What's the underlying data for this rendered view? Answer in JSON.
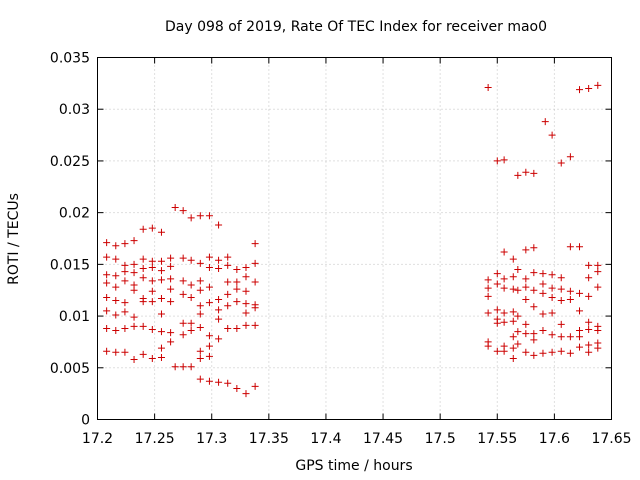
{
  "chart_data": {
    "type": "scatter",
    "title": "Day 098 of 2019, Rate Of TEC Index for receiver mao0",
    "xlabel": "GPS time / hours",
    "ylabel": "ROTI / TECUs",
    "xlim": [
      17.2,
      17.65
    ],
    "ylim": [
      0,
      0.035
    ],
    "xticks": [
      17.2,
      17.25,
      17.3,
      17.35,
      17.4,
      17.45,
      17.5,
      17.55,
      17.6,
      17.65
    ],
    "xtick_labels": [
      "17.2",
      "17.25",
      "17.3",
      "17.35",
      "17.4",
      "17.45",
      "17.5",
      "17.55",
      "17.6",
      "17.65"
    ],
    "yticks": [
      0,
      0.005,
      0.01,
      0.015,
      0.02,
      0.025,
      0.03,
      0.035
    ],
    "ytick_labels": [
      "0",
      "0.005",
      "0.01",
      "0.015",
      "0.02",
      "0.025",
      "0.03",
      "0.035"
    ],
    "grid": true,
    "marker": "+",
    "color": "#cc0000",
    "series": [
      {
        "name": "ROTI",
        "points": [
          [
            17.208,
            0.0171
          ],
          [
            17.208,
            0.0157
          ],
          [
            17.208,
            0.014
          ],
          [
            17.208,
            0.0132
          ],
          [
            17.208,
            0.0118
          ],
          [
            17.208,
            0.0105
          ],
          [
            17.208,
            0.0088
          ],
          [
            17.208,
            0.0066
          ],
          [
            17.216,
            0.0168
          ],
          [
            17.216,
            0.0155
          ],
          [
            17.216,
            0.0139
          ],
          [
            17.216,
            0.0128
          ],
          [
            17.216,
            0.0115
          ],
          [
            17.216,
            0.0101
          ],
          [
            17.216,
            0.0086
          ],
          [
            17.216,
            0.0065
          ],
          [
            17.224,
            0.017
          ],
          [
            17.224,
            0.0149
          ],
          [
            17.224,
            0.0143
          ],
          [
            17.224,
            0.0134
          ],
          [
            17.224,
            0.0113
          ],
          [
            17.224,
            0.0104
          ],
          [
            17.224,
            0.0088
          ],
          [
            17.224,
            0.0065
          ],
          [
            17.232,
            0.0173
          ],
          [
            17.232,
            0.015
          ],
          [
            17.232,
            0.0142
          ],
          [
            17.232,
            0.013
          ],
          [
            17.232,
            0.0125
          ],
          [
            17.232,
            0.0099
          ],
          [
            17.232,
            0.009
          ],
          [
            17.232,
            0.0058
          ],
          [
            17.24,
            0.0184
          ],
          [
            17.24,
            0.0155
          ],
          [
            17.24,
            0.0146
          ],
          [
            17.24,
            0.0137
          ],
          [
            17.24,
            0.0117
          ],
          [
            17.24,
            0.0114
          ],
          [
            17.24,
            0.009
          ],
          [
            17.24,
            0.0063
          ],
          [
            17.248,
            0.0185
          ],
          [
            17.248,
            0.0153
          ],
          [
            17.248,
            0.0147
          ],
          [
            17.248,
            0.0134
          ],
          [
            17.248,
            0.0124
          ],
          [
            17.248,
            0.0114
          ],
          [
            17.248,
            0.0087
          ],
          [
            17.248,
            0.0059
          ],
          [
            17.256,
            0.0181
          ],
          [
            17.256,
            0.0153
          ],
          [
            17.256,
            0.0144
          ],
          [
            17.256,
            0.0135
          ],
          [
            17.256,
            0.0117
          ],
          [
            17.256,
            0.0102
          ],
          [
            17.256,
            0.0085
          ],
          [
            17.256,
            0.0069
          ],
          [
            17.256,
            0.006
          ],
          [
            17.264,
            0.0156
          ],
          [
            17.264,
            0.0148
          ],
          [
            17.264,
            0.0136
          ],
          [
            17.264,
            0.0126
          ],
          [
            17.264,
            0.0114
          ],
          [
            17.264,
            0.0084
          ],
          [
            17.264,
            0.0075
          ],
          [
            17.268,
            0.0205
          ],
          [
            17.268,
            0.0051
          ],
          [
            17.275,
            0.0202
          ],
          [
            17.275,
            0.0156
          ],
          [
            17.275,
            0.0134
          ],
          [
            17.275,
            0.0121
          ],
          [
            17.275,
            0.0093
          ],
          [
            17.275,
            0.0082
          ],
          [
            17.275,
            0.0051
          ],
          [
            17.282,
            0.0195
          ],
          [
            17.282,
            0.0154
          ],
          [
            17.282,
            0.013
          ],
          [
            17.282,
            0.0118
          ],
          [
            17.282,
            0.0093
          ],
          [
            17.282,
            0.0086
          ],
          [
            17.282,
            0.0051
          ],
          [
            17.29,
            0.0197
          ],
          [
            17.29,
            0.0151
          ],
          [
            17.29,
            0.0134
          ],
          [
            17.29,
            0.0125
          ],
          [
            17.29,
            0.011
          ],
          [
            17.29,
            0.0102
          ],
          [
            17.29,
            0.0089
          ],
          [
            17.29,
            0.0066
          ],
          [
            17.29,
            0.0059
          ],
          [
            17.29,
            0.0039
          ],
          [
            17.298,
            0.0197
          ],
          [
            17.298,
            0.0157
          ],
          [
            17.298,
            0.0147
          ],
          [
            17.298,
            0.0128
          ],
          [
            17.298,
            0.0113
          ],
          [
            17.298,
            0.0081
          ],
          [
            17.298,
            0.0071
          ],
          [
            17.298,
            0.0061
          ],
          [
            17.298,
            0.0037
          ],
          [
            17.306,
            0.0188
          ],
          [
            17.306,
            0.0154
          ],
          [
            17.306,
            0.0146
          ],
          [
            17.306,
            0.0116
          ],
          [
            17.306,
            0.0106
          ],
          [
            17.306,
            0.0097
          ],
          [
            17.306,
            0.0078
          ],
          [
            17.306,
            0.0036
          ],
          [
            17.314,
            0.0157
          ],
          [
            17.314,
            0.0149
          ],
          [
            17.314,
            0.0133
          ],
          [
            17.314,
            0.0121
          ],
          [
            17.314,
            0.011
          ],
          [
            17.314,
            0.0088
          ],
          [
            17.314,
            0.0035
          ],
          [
            17.322,
            0.0145
          ],
          [
            17.322,
            0.0133
          ],
          [
            17.322,
            0.0126
          ],
          [
            17.322,
            0.0114
          ],
          [
            17.322,
            0.0088
          ],
          [
            17.322,
            0.003
          ],
          [
            17.33,
            0.0147
          ],
          [
            17.33,
            0.0138
          ],
          [
            17.33,
            0.0124
          ],
          [
            17.33,
            0.0112
          ],
          [
            17.33,
            0.0103
          ],
          [
            17.33,
            0.0091
          ],
          [
            17.33,
            0.0025
          ],
          [
            17.338,
            0.017
          ],
          [
            17.338,
            0.0151
          ],
          [
            17.338,
            0.0133
          ],
          [
            17.338,
            0.0111
          ],
          [
            17.338,
            0.0108
          ],
          [
            17.338,
            0.0091
          ],
          [
            17.338,
            0.0032
          ],
          [
            17.542,
            0.0321
          ],
          [
            17.542,
            0.0135
          ],
          [
            17.542,
            0.0127
          ],
          [
            17.542,
            0.0119
          ],
          [
            17.542,
            0.0103
          ],
          [
            17.542,
            0.0075
          ],
          [
            17.542,
            0.0071
          ],
          [
            17.55,
            0.025
          ],
          [
            17.55,
            0.0141
          ],
          [
            17.55,
            0.0131
          ],
          [
            17.55,
            0.0106
          ],
          [
            17.55,
            0.0097
          ],
          [
            17.55,
            0.0093
          ],
          [
            17.55,
            0.0066
          ],
          [
            17.556,
            0.0251
          ],
          [
            17.556,
            0.0162
          ],
          [
            17.556,
            0.0136
          ],
          [
            17.556,
            0.0127
          ],
          [
            17.556,
            0.0103
          ],
          [
            17.556,
            0.0094
          ],
          [
            17.556,
            0.0071
          ],
          [
            17.556,
            0.0066
          ],
          [
            17.564,
            0.0155
          ],
          [
            17.564,
            0.0138
          ],
          [
            17.564,
            0.0126
          ],
          [
            17.564,
            0.0104
          ],
          [
            17.564,
            0.0095
          ],
          [
            17.564,
            0.008
          ],
          [
            17.564,
            0.0069
          ],
          [
            17.564,
            0.0059
          ],
          [
            17.568,
            0.0236
          ],
          [
            17.568,
            0.0145
          ],
          [
            17.568,
            0.0125
          ],
          [
            17.568,
            0.01
          ],
          [
            17.568,
            0.0085
          ],
          [
            17.568,
            0.0073
          ],
          [
            17.575,
            0.0239
          ],
          [
            17.575,
            0.0164
          ],
          [
            17.575,
            0.0136
          ],
          [
            17.575,
            0.0128
          ],
          [
            17.575,
            0.0116
          ],
          [
            17.575,
            0.0092
          ],
          [
            17.575,
            0.0083
          ],
          [
            17.575,
            0.0065
          ],
          [
            17.582,
            0.0238
          ],
          [
            17.582,
            0.0166
          ],
          [
            17.582,
            0.0142
          ],
          [
            17.582,
            0.0125
          ],
          [
            17.582,
            0.0109
          ],
          [
            17.582,
            0.0083
          ],
          [
            17.582,
            0.0077
          ],
          [
            17.582,
            0.0062
          ],
          [
            17.59,
            0.0141
          ],
          [
            17.59,
            0.0131
          ],
          [
            17.59,
            0.0122
          ],
          [
            17.59,
            0.0102
          ],
          [
            17.59,
            0.0086
          ],
          [
            17.59,
            0.0064
          ],
          [
            17.592,
            0.0288
          ],
          [
            17.598,
            0.0275
          ],
          [
            17.598,
            0.014
          ],
          [
            17.598,
            0.0127
          ],
          [
            17.598,
            0.0118
          ],
          [
            17.598,
            0.0103
          ],
          [
            17.598,
            0.0082
          ],
          [
            17.598,
            0.0065
          ],
          [
            17.606,
            0.0248
          ],
          [
            17.606,
            0.0137
          ],
          [
            17.606,
            0.0126
          ],
          [
            17.606,
            0.0115
          ],
          [
            17.606,
            0.0092
          ],
          [
            17.606,
            0.008
          ],
          [
            17.606,
            0.0066
          ],
          [
            17.614,
            0.0254
          ],
          [
            17.614,
            0.0167
          ],
          [
            17.614,
            0.0124
          ],
          [
            17.614,
            0.0116
          ],
          [
            17.614,
            0.008
          ],
          [
            17.614,
            0.0064
          ],
          [
            17.622,
            0.0319
          ],
          [
            17.622,
            0.0167
          ],
          [
            17.622,
            0.0122
          ],
          [
            17.622,
            0.0105
          ],
          [
            17.622,
            0.0086
          ],
          [
            17.622,
            0.008
          ],
          [
            17.622,
            0.007
          ],
          [
            17.63,
            0.032
          ],
          [
            17.63,
            0.0149
          ],
          [
            17.63,
            0.0137
          ],
          [
            17.63,
            0.0119
          ],
          [
            17.63,
            0.0094
          ],
          [
            17.63,
            0.0087
          ],
          [
            17.63,
            0.0072
          ],
          [
            17.63,
            0.0065
          ],
          [
            17.638,
            0.0323
          ],
          [
            17.638,
            0.0149
          ],
          [
            17.638,
            0.0143
          ],
          [
            17.638,
            0.0128
          ],
          [
            17.638,
            0.009
          ],
          [
            17.638,
            0.0086
          ],
          [
            17.638,
            0.0074
          ],
          [
            17.638,
            0.0069
          ]
        ]
      }
    ]
  }
}
